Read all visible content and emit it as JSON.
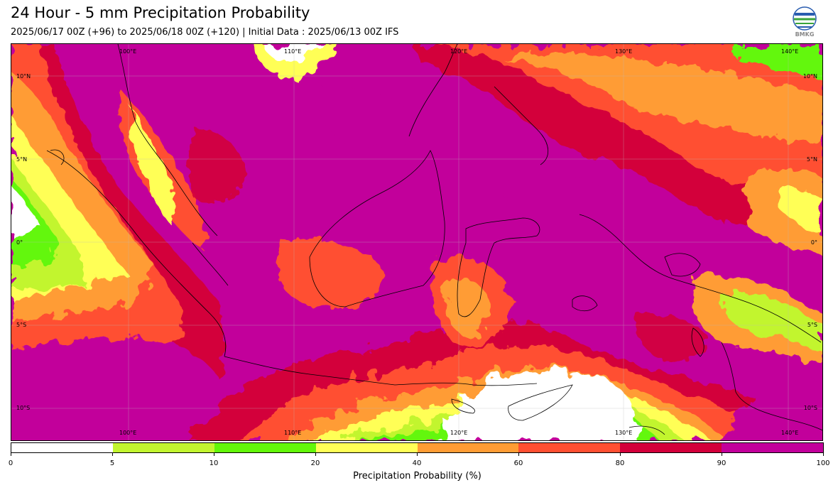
{
  "header": {
    "title": "24 Hour - 5 mm Precipitation Probability",
    "subtitle": "2025/06/17 00Z (+96) to 2025/06/18 00Z (+120) | Initial Data : 2025/06/13 00Z IFS"
  },
  "logo": {
    "text": "BMKG",
    "icon": "bmkg-globe-logo"
  },
  "map": {
    "lon_labels_top": [
      "100°E",
      "110°E",
      "120°E",
      "130°E",
      "140°E"
    ],
    "lon_labels_bottom": [
      "100°E",
      "110°E",
      "120°E",
      "130°E",
      "140°E"
    ],
    "lat_labels_left": [
      "10°N",
      "5°N",
      "0°",
      "5°S",
      "10°S"
    ],
    "lat_labels_right": [
      "10°N",
      "5°N",
      "0°",
      "5°S",
      "10°S"
    ]
  },
  "colorbar": {
    "title": "Precipitation Probability (%)",
    "ticks": [
      "0",
      "5",
      "10",
      "20",
      "40",
      "60",
      "80",
      "90",
      "100"
    ],
    "colors": [
      "#ffffff",
      "#c2f52f",
      "#63f70a",
      "#ffff56",
      "#ff9c34",
      "#ff4f31",
      "#d3003a",
      "#c2009b"
    ]
  }
}
